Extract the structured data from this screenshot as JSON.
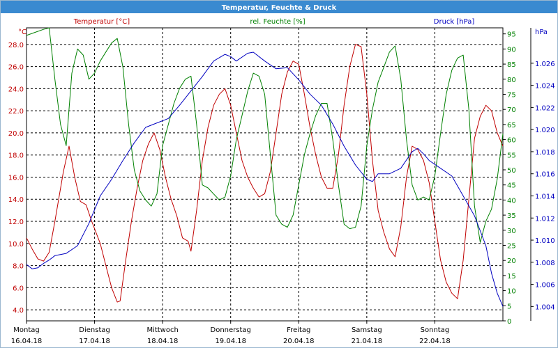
{
  "window": {
    "title": "Temperatur, Feuchte & Druck"
  },
  "colors": {
    "temperature": "#c00000",
    "humidity": "#008000",
    "pressure": "#0000c0",
    "grid": "#000000",
    "title_bar": "#3a8ad0"
  },
  "chart_data": {
    "type": "line",
    "title": "Temperatur, Feuchte & Druck",
    "x": {
      "range": [
        "2018-04-16 00:00",
        "2018-04-23 00:00"
      ],
      "tick_labels": [
        {
          "day": "Montag",
          "date": "16.04.18"
        },
        {
          "day": "Dienstag",
          "date": "17.04.18"
        },
        {
          "day": "Mittwoch",
          "date": "18.04.18"
        },
        {
          "day": "Donnerstag",
          "date": "19.04.18"
        },
        {
          "day": "Freitag",
          "date": "20.04.18"
        },
        {
          "day": "Samstag",
          "date": "21.04.18"
        },
        {
          "day": "Sonntag",
          "date": "22.04.18"
        }
      ],
      "grid": true
    },
    "axes": {
      "temperature": {
        "legend": "Temperatur [°C]",
        "unit": "°C",
        "range": [
          3,
          29.5
        ],
        "ticks": [
          "4.0",
          "6.0",
          "8.0",
          "10.0",
          "12.0",
          "14.0",
          "16.0",
          "18.0",
          "20.0",
          "22.0",
          "24.0",
          "26.0",
          "28.0"
        ]
      },
      "humidity": {
        "legend": "rel. Feuchte [%]",
        "unit": "%",
        "range": [
          0,
          97
        ],
        "ticks": [
          "0",
          "5",
          "10",
          "15",
          "20",
          "25",
          "30",
          "35",
          "40",
          "45",
          "50",
          "55",
          "60",
          "65",
          "70",
          "75",
          "80",
          "85",
          "90",
          "95"
        ]
      },
      "pressure": {
        "legend": "Druck [hPa]",
        "unit": "hPa",
        "range": [
          1.0027,
          1.0292
        ],
        "ticks": [
          "1.004",
          "1.006",
          "1.008",
          "1.010",
          "1.012",
          "1.014",
          "1.016",
          "1.018",
          "1.020",
          "1.022",
          "1.024",
          "1.026"
        ]
      }
    },
    "series": [
      {
        "name": "Temperatur [°C]",
        "axis": "temperature",
        "points": [
          [
            "2018-04-16 00:00",
            10.5
          ],
          [
            "2018-04-16 02:00",
            9.5
          ],
          [
            "2018-04-16 04:00",
            8.6
          ],
          [
            "2018-04-16 06:00",
            8.4
          ],
          [
            "2018-04-16 08:00",
            9.2
          ],
          [
            "2018-04-16 10:00",
            12.0
          ],
          [
            "2018-04-16 13:00",
            16.5
          ],
          [
            "2018-04-16 15:00",
            18.8
          ],
          [
            "2018-04-16 17:00",
            16.0
          ],
          [
            "2018-04-16 19:00",
            13.8
          ],
          [
            "2018-04-16 21:00",
            13.5
          ],
          [
            "2018-04-16 23:00",
            12.0
          ],
          [
            "2018-04-17 02:00",
            10.0
          ],
          [
            "2018-04-17 04:00",
            8.0
          ],
          [
            "2018-04-17 06:00",
            6.0
          ],
          [
            "2018-04-17 08:00",
            4.7
          ],
          [
            "2018-04-17 09:00",
            4.8
          ],
          [
            "2018-04-17 11:00",
            8.5
          ],
          [
            "2018-04-17 13:00",
            12.0
          ],
          [
            "2018-04-17 15:00",
            15.0
          ],
          [
            "2018-04-17 17:00",
            17.5
          ],
          [
            "2018-04-17 19:00",
            19.0
          ],
          [
            "2018-04-17 21:00",
            20.0
          ],
          [
            "2018-04-17 23:00",
            18.5
          ],
          [
            "2018-04-18 01:00",
            16.0
          ],
          [
            "2018-04-18 03:00",
            14.0
          ],
          [
            "2018-04-18 05:00",
            12.5
          ],
          [
            "2018-04-18 07:00",
            10.5
          ],
          [
            "2018-04-18 09:00",
            10.2
          ],
          [
            "2018-04-18 10:00",
            9.3
          ],
          [
            "2018-04-18 12:00",
            13.0
          ],
          [
            "2018-04-18 14:00",
            17.5
          ],
          [
            "2018-04-18 16:00",
            20.5
          ],
          [
            "2018-04-18 18:00",
            22.5
          ],
          [
            "2018-04-18 20:00",
            23.5
          ],
          [
            "2018-04-18 22:00",
            24.0
          ],
          [
            "2018-04-19 00:00",
            22.5
          ],
          [
            "2018-04-19 02:00",
            20.0
          ],
          [
            "2018-04-19 04:00",
            17.5
          ],
          [
            "2018-04-19 06:00",
            16.0
          ],
          [
            "2018-04-19 08:00",
            15.0
          ],
          [
            "2018-04-19 10:00",
            14.2
          ],
          [
            "2018-04-19 12:00",
            14.5
          ],
          [
            "2018-04-19 14:00",
            16.5
          ],
          [
            "2018-04-19 16:00",
            20.0
          ],
          [
            "2018-04-19 18:00",
            23.5
          ],
          [
            "2018-04-19 20:00",
            25.5
          ],
          [
            "2018-04-19 22:00",
            26.5
          ],
          [
            "2018-04-20 00:00",
            26.2
          ],
          [
            "2018-04-20 02:00",
            23.5
          ],
          [
            "2018-04-20 04:00",
            20.5
          ],
          [
            "2018-04-20 06:00",
            18.0
          ],
          [
            "2018-04-20 08:00",
            16.0
          ],
          [
            "2018-04-20 10:00",
            15.0
          ],
          [
            "2018-04-20 12:00",
            15.0
          ],
          [
            "2018-04-20 14:00",
            18.0
          ],
          [
            "2018-04-20 16:00",
            22.5
          ],
          [
            "2018-04-20 18:00",
            26.0
          ],
          [
            "2018-04-20 20:00",
            28.0
          ],
          [
            "2018-04-20 22:00",
            27.8
          ],
          [
            "2018-04-21 00:00",
            23.5
          ],
          [
            "2018-04-21 02:00",
            17.5
          ],
          [
            "2018-04-21 04:00",
            13.0
          ],
          [
            "2018-04-21 06:00",
            11.0
          ],
          [
            "2018-04-21 08:00",
            9.5
          ],
          [
            "2018-04-21 10:00",
            8.8
          ],
          [
            "2018-04-21 12:00",
            11.5
          ],
          [
            "2018-04-21 14:00",
            16.0
          ],
          [
            "2018-04-21 16:00",
            18.8
          ],
          [
            "2018-04-21 18:00",
            18.5
          ],
          [
            "2018-04-21 20:00",
            17.5
          ],
          [
            "2018-04-21 22:00",
            15.5
          ],
          [
            "2018-04-22 00:00",
            12.0
          ],
          [
            "2018-04-22 02:00",
            8.5
          ],
          [
            "2018-04-22 04:00",
            6.5
          ],
          [
            "2018-04-22 06:00",
            5.5
          ],
          [
            "2018-04-22 08:00",
            5.0
          ],
          [
            "2018-04-22 10:00",
            8.5
          ],
          [
            "2018-04-22 12:00",
            14.0
          ],
          [
            "2018-04-22 14:00",
            19.5
          ],
          [
            "2018-04-22 16:00",
            21.5
          ],
          [
            "2018-04-22 18:00",
            22.5
          ],
          [
            "2018-04-22 20:00",
            22.0
          ],
          [
            "2018-04-22 22:00",
            20.0
          ],
          [
            "2018-04-23 00:00",
            18.8
          ]
        ]
      },
      {
        "name": "rel. Feuchte [%]",
        "axis": "humidity",
        "points": [
          [
            "2018-04-16 00:00",
            94.5
          ],
          [
            "2018-04-16 03:00",
            95.5
          ],
          [
            "2018-04-16 06:00",
            96.5
          ],
          [
            "2018-04-16 08:00",
            97.0
          ],
          [
            "2018-04-16 10:00",
            80.0
          ],
          [
            "2018-04-16 12:00",
            65.0
          ],
          [
            "2018-04-16 14:00",
            58.0
          ],
          [
            "2018-04-16 16:00",
            82.0
          ],
          [
            "2018-04-16 18:00",
            90.0
          ],
          [
            "2018-04-16 20:00",
            88.0
          ],
          [
            "2018-04-16 22:00",
            80.0
          ],
          [
            "2018-04-17 00:00",
            82.0
          ],
          [
            "2018-04-17 02:00",
            86.0
          ],
          [
            "2018-04-17 04:00",
            89.0
          ],
          [
            "2018-04-17 06:00",
            92.0
          ],
          [
            "2018-04-17 08:00",
            93.5
          ],
          [
            "2018-04-17 10:00",
            84.0
          ],
          [
            "2018-04-17 12:00",
            65.0
          ],
          [
            "2018-04-17 14:00",
            50.0
          ],
          [
            "2018-04-17 16:00",
            43.0
          ],
          [
            "2018-04-17 18:00",
            40.0
          ],
          [
            "2018-04-17 20:00",
            38.0
          ],
          [
            "2018-04-17 22:00",
            42.0
          ],
          [
            "2018-04-18 00:00",
            58.0
          ],
          [
            "2018-04-18 02:00",
            65.0
          ],
          [
            "2018-04-18 04:00",
            72.0
          ],
          [
            "2018-04-18 06:00",
            77.0
          ],
          [
            "2018-04-18 08:00",
            80.0
          ],
          [
            "2018-04-18 10:00",
            81.0
          ],
          [
            "2018-04-18 12:00",
            65.0
          ],
          [
            "2018-04-18 14:00",
            45.0
          ],
          [
            "2018-04-18 16:00",
            44.0
          ],
          [
            "2018-04-18 18:00",
            42.0
          ],
          [
            "2018-04-18 20:00",
            40.0
          ],
          [
            "2018-04-18 22:00",
            41.0
          ],
          [
            "2018-04-19 00:00",
            48.0
          ],
          [
            "2018-04-19 02:00",
            60.0
          ],
          [
            "2018-04-19 04:00",
            68.0
          ],
          [
            "2018-04-19 06:00",
            76.0
          ],
          [
            "2018-04-19 08:00",
            82.0
          ],
          [
            "2018-04-19 10:00",
            81.0
          ],
          [
            "2018-04-19 12:00",
            75.0
          ],
          [
            "2018-04-19 14:00",
            55.0
          ],
          [
            "2018-04-19 16:00",
            35.0
          ],
          [
            "2018-04-19 18:00",
            32.0
          ],
          [
            "2018-04-19 20:00",
            31.0
          ],
          [
            "2018-04-19 22:00",
            35.0
          ],
          [
            "2018-04-20 00:00",
            45.0
          ],
          [
            "2018-04-20 02:00",
            55.0
          ],
          [
            "2018-04-20 04:00",
            62.0
          ],
          [
            "2018-04-20 06:00",
            68.0
          ],
          [
            "2018-04-20 08:00",
            72.0
          ],
          [
            "2018-04-20 10:00",
            72.0
          ],
          [
            "2018-04-20 12:00",
            60.0
          ],
          [
            "2018-04-20 14:00",
            45.0
          ],
          [
            "2018-04-20 16:00",
            32.0
          ],
          [
            "2018-04-20 18:00",
            30.5
          ],
          [
            "2018-04-20 20:00",
            31.0
          ],
          [
            "2018-04-20 22:00",
            38.0
          ],
          [
            "2018-04-21 00:00",
            58.0
          ],
          [
            "2018-04-21 02:00",
            70.0
          ],
          [
            "2018-04-21 04:00",
            79.0
          ],
          [
            "2018-04-21 06:00",
            84.0
          ],
          [
            "2018-04-21 08:00",
            89.0
          ],
          [
            "2018-04-21 10:00",
            91.0
          ],
          [
            "2018-04-21 12:00",
            80.0
          ],
          [
            "2018-04-21 14:00",
            60.0
          ],
          [
            "2018-04-21 16:00",
            45.0
          ],
          [
            "2018-04-21 18:00",
            40.0
          ],
          [
            "2018-04-21 20:00",
            41.0
          ],
          [
            "2018-04-21 22:00",
            40.0
          ],
          [
            "2018-04-22 00:00",
            48.0
          ],
          [
            "2018-04-22 02:00",
            62.0
          ],
          [
            "2018-04-22 04:00",
            75.0
          ],
          [
            "2018-04-22 06:00",
            83.0
          ],
          [
            "2018-04-22 08:00",
            87.0
          ],
          [
            "2018-04-22 10:00",
            88.0
          ],
          [
            "2018-04-22 12:00",
            70.0
          ],
          [
            "2018-04-22 14:00",
            38.0
          ],
          [
            "2018-04-22 16:00",
            26.0
          ],
          [
            "2018-04-22 18:00",
            33.0
          ],
          [
            "2018-04-22 20:00",
            37.0
          ],
          [
            "2018-04-22 22:00",
            47.0
          ],
          [
            "2018-04-23 00:00",
            62.0
          ]
        ]
      },
      {
        "name": "Druck [hPa]",
        "axis": "pressure",
        "points": [
          [
            "2018-04-16 00:00",
            1.0078
          ],
          [
            "2018-04-16 02:00",
            1.0074
          ],
          [
            "2018-04-16 04:00",
            1.0075
          ],
          [
            "2018-04-16 06:00",
            1.0079
          ],
          [
            "2018-04-16 08:00",
            1.0082
          ],
          [
            "2018-04-16 10:00",
            1.0086
          ],
          [
            "2018-04-16 14:00",
            1.0088
          ],
          [
            "2018-04-16 18:00",
            1.0095
          ],
          [
            "2018-04-16 22:00",
            1.0115
          ],
          [
            "2018-04-17 02:00",
            1.014
          ],
          [
            "2018-04-17 06:00",
            1.0155
          ],
          [
            "2018-04-17 10:00",
            1.0172
          ],
          [
            "2018-04-17 14:00",
            1.0188
          ],
          [
            "2018-04-17 18:00",
            1.0202
          ],
          [
            "2018-04-17 22:00",
            1.0206
          ],
          [
            "2018-04-18 02:00",
            1.021
          ],
          [
            "2018-04-18 06:00",
            1.0222
          ],
          [
            "2018-04-18 10:00",
            1.0235
          ],
          [
            "2018-04-18 14:00",
            1.0248
          ],
          [
            "2018-04-18 18:00",
            1.0262
          ],
          [
            "2018-04-18 22:00",
            1.0268
          ],
          [
            "2018-04-19 00:00",
            1.0266
          ],
          [
            "2018-04-19 02:00",
            1.0262
          ],
          [
            "2018-04-19 06:00",
            1.0269
          ],
          [
            "2018-04-19 08:00",
            1.027
          ],
          [
            "2018-04-19 12:00",
            1.0262
          ],
          [
            "2018-04-19 16:00",
            1.0255
          ],
          [
            "2018-04-19 20:00",
            1.0256
          ],
          [
            "2018-04-20 00:00",
            1.0245
          ],
          [
            "2018-04-20 04:00",
            1.0232
          ],
          [
            "2018-04-20 08:00",
            1.0222
          ],
          [
            "2018-04-20 12:00",
            1.0205
          ],
          [
            "2018-04-20 16:00",
            1.0185
          ],
          [
            "2018-04-20 20:00",
            1.0168
          ],
          [
            "2018-04-21 00:00",
            1.0155
          ],
          [
            "2018-04-21 02:00",
            1.0153
          ],
          [
            "2018-04-21 04:00",
            1.016
          ],
          [
            "2018-04-21 08:00",
            1.016
          ],
          [
            "2018-04-21 12:00",
            1.0165
          ],
          [
            "2018-04-21 16:00",
            1.018
          ],
          [
            "2018-04-21 18:00",
            1.0183
          ],
          [
            "2018-04-21 20:00",
            1.0178
          ],
          [
            "2018-04-21 22:00",
            1.0172
          ],
          [
            "2018-04-22 02:00",
            1.0165
          ],
          [
            "2018-04-22 06:00",
            1.0158
          ],
          [
            "2018-04-22 10:00",
            1.014
          ],
          [
            "2018-04-22 14:00",
            1.0122
          ],
          [
            "2018-04-22 18:00",
            1.0095
          ],
          [
            "2018-04-22 20:00",
            1.007
          ],
          [
            "2018-04-22 22:00",
            1.0052
          ],
          [
            "2018-04-23 00:00",
            1.004
          ]
        ]
      }
    ]
  }
}
